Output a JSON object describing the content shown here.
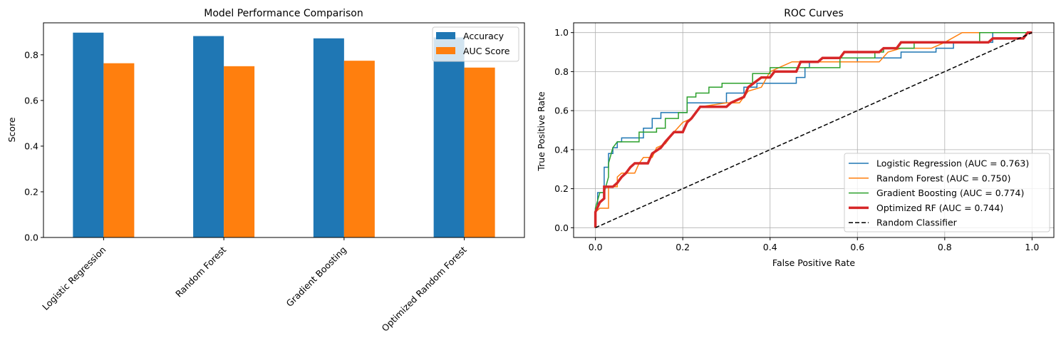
{
  "chart_data": [
    {
      "type": "bar",
      "title": "Model Performance Comparison",
      "xlabel": "",
      "ylabel": "Score",
      "ylim": [
        0,
        0.94
      ],
      "yticks": [
        "0.0",
        "0.2",
        "0.4",
        "0.6",
        "0.8"
      ],
      "categories": [
        "Logistic Regression",
        "Random Forest",
        "Gradient Boosting",
        "Optimized Random Forest"
      ],
      "series": [
        {
          "name": "Accuracy",
          "color": "#1f77b4",
          "values": [
            0.897,
            0.882,
            0.872,
            0.876
          ]
        },
        {
          "name": "AUC Score",
          "color": "#ff7f0e",
          "values": [
            0.763,
            0.75,
            0.774,
            0.744
          ]
        }
      ],
      "legend": "top-right",
      "grid": false
    },
    {
      "type": "line",
      "title": "ROC Curves",
      "xlabel": "False Positive Rate",
      "ylabel": "True Positive Rate",
      "xlim": [
        -0.05,
        1.05
      ],
      "ylim": [
        -0.05,
        1.05
      ],
      "xticks": [
        "0.0",
        "0.2",
        "0.4",
        "0.6",
        "0.8",
        "1.0"
      ],
      "yticks": [
        "0.0",
        "0.2",
        "0.4",
        "0.6",
        "0.8",
        "1.0"
      ],
      "grid": true,
      "legend": "lower-right",
      "series": [
        {
          "name": "Logistic Regression (AUC = 0.763)",
          "color": "#1f77b4",
          "style": "solid",
          "width": 1.5,
          "points": [
            [
              0,
              0
            ],
            [
              0,
              0.1
            ],
            [
              0.005,
              0.1
            ],
            [
              0.005,
              0.18
            ],
            [
              0.02,
              0.18
            ],
            [
              0.02,
              0.31
            ],
            [
              0.03,
              0.31
            ],
            [
              0.03,
              0.38
            ],
            [
              0.04,
              0.38
            ],
            [
              0.04,
              0.41
            ],
            [
              0.05,
              0.41
            ],
            [
              0.05,
              0.44
            ],
            [
              0.06,
              0.44
            ],
            [
              0.06,
              0.46
            ],
            [
              0.11,
              0.46
            ],
            [
              0.11,
              0.51
            ],
            [
              0.13,
              0.51
            ],
            [
              0.13,
              0.56
            ],
            [
              0.15,
              0.56
            ],
            [
              0.15,
              0.59
            ],
            [
              0.21,
              0.59
            ],
            [
              0.21,
              0.64
            ],
            [
              0.3,
              0.64
            ],
            [
              0.3,
              0.69
            ],
            [
              0.34,
              0.69
            ],
            [
              0.34,
              0.72
            ],
            [
              0.37,
              0.72
            ],
            [
              0.37,
              0.74
            ],
            [
              0.46,
              0.74
            ],
            [
              0.46,
              0.77
            ],
            [
              0.48,
              0.77
            ],
            [
              0.48,
              0.82
            ],
            [
              0.49,
              0.82
            ],
            [
              0.49,
              0.85
            ],
            [
              0.6,
              0.85
            ],
            [
              0.6,
              0.87
            ],
            [
              0.7,
              0.87
            ],
            [
              0.7,
              0.9
            ],
            [
              0.78,
              0.9
            ],
            [
              0.78,
              0.92
            ],
            [
              0.82,
              0.92
            ],
            [
              0.82,
              0.95
            ],
            [
              0.91,
              0.95
            ],
            [
              0.91,
              1.0
            ],
            [
              1.0,
              1.0
            ]
          ]
        },
        {
          "name": "Random Forest (AUC = 0.750)",
          "color": "#ff7f0e",
          "style": "solid",
          "width": 1.5,
          "points": [
            [
              0,
              0
            ],
            [
              0,
              0.08
            ],
            [
              0.01,
              0.1
            ],
            [
              0.03,
              0.1
            ],
            [
              0.03,
              0.21
            ],
            [
              0.05,
              0.21
            ],
            [
              0.05,
              0.26
            ],
            [
              0.06,
              0.28
            ],
            [
              0.09,
              0.28
            ],
            [
              0.1,
              0.33
            ],
            [
              0.11,
              0.36
            ],
            [
              0.13,
              0.36
            ],
            [
              0.14,
              0.41
            ],
            [
              0.16,
              0.43
            ],
            [
              0.18,
              0.49
            ],
            [
              0.2,
              0.54
            ],
            [
              0.22,
              0.56
            ],
            [
              0.24,
              0.62
            ],
            [
              0.3,
              0.64
            ],
            [
              0.33,
              0.64
            ],
            [
              0.35,
              0.7
            ],
            [
              0.38,
              0.72
            ],
            [
              0.4,
              0.8
            ],
            [
              0.42,
              0.82
            ],
            [
              0.45,
              0.85
            ],
            [
              0.65,
              0.85
            ],
            [
              0.67,
              0.9
            ],
            [
              0.7,
              0.92
            ],
            [
              0.77,
              0.92
            ],
            [
              0.8,
              0.95
            ],
            [
              0.84,
              1.0
            ],
            [
              1.0,
              1.0
            ]
          ]
        },
        {
          "name": "Gradient Boosting (AUC = 0.774)",
          "color": "#2ca02c",
          "style": "solid",
          "width": 1.5,
          "points": [
            [
              0,
              0
            ],
            [
              0,
              0.1
            ],
            [
              0.01,
              0.18
            ],
            [
              0.02,
              0.18
            ],
            [
              0.03,
              0.26
            ],
            [
              0.03,
              0.33
            ],
            [
              0.04,
              0.41
            ],
            [
              0.05,
              0.44
            ],
            [
              0.1,
              0.44
            ],
            [
              0.1,
              0.49
            ],
            [
              0.14,
              0.49
            ],
            [
              0.14,
              0.51
            ],
            [
              0.16,
              0.51
            ],
            [
              0.16,
              0.56
            ],
            [
              0.19,
              0.56
            ],
            [
              0.19,
              0.59
            ],
            [
              0.21,
              0.59
            ],
            [
              0.21,
              0.67
            ],
            [
              0.23,
              0.67
            ],
            [
              0.23,
              0.69
            ],
            [
              0.26,
              0.69
            ],
            [
              0.26,
              0.72
            ],
            [
              0.29,
              0.72
            ],
            [
              0.29,
              0.74
            ],
            [
              0.36,
              0.74
            ],
            [
              0.36,
              0.79
            ],
            [
              0.4,
              0.79
            ],
            [
              0.4,
              0.82
            ],
            [
              0.56,
              0.82
            ],
            [
              0.56,
              0.87
            ],
            [
              0.64,
              0.87
            ],
            [
              0.64,
              0.9
            ],
            [
              0.66,
              0.9
            ],
            [
              0.66,
              0.92
            ],
            [
              0.73,
              0.92
            ],
            [
              0.73,
              0.95
            ],
            [
              0.88,
              0.95
            ],
            [
              0.88,
              1.0
            ],
            [
              1.0,
              1.0
            ]
          ]
        },
        {
          "name": "Optimized RF (AUC = 0.744)",
          "color": "#d62728",
          "style": "solid",
          "width": 3.5,
          "points": [
            [
              0,
              0
            ],
            [
              0,
              0.08
            ],
            [
              0.01,
              0.13
            ],
            [
              0.02,
              0.15
            ],
            [
              0.02,
              0.21
            ],
            [
              0.04,
              0.21
            ],
            [
              0.05,
              0.23
            ],
            [
              0.06,
              0.26
            ],
            [
              0.07,
              0.28
            ],
            [
              0.08,
              0.31
            ],
            [
              0.09,
              0.33
            ],
            [
              0.12,
              0.33
            ],
            [
              0.13,
              0.38
            ],
            [
              0.15,
              0.41
            ],
            [
              0.16,
              0.44
            ],
            [
              0.18,
              0.49
            ],
            [
              0.2,
              0.49
            ],
            [
              0.21,
              0.54
            ],
            [
              0.22,
              0.56
            ],
            [
              0.24,
              0.62
            ],
            [
              0.3,
              0.62
            ],
            [
              0.31,
              0.64
            ],
            [
              0.34,
              0.67
            ],
            [
              0.35,
              0.72
            ],
            [
              0.38,
              0.77
            ],
            [
              0.4,
              0.77
            ],
            [
              0.41,
              0.8
            ],
            [
              0.46,
              0.8
            ],
            [
              0.47,
              0.85
            ],
            [
              0.51,
              0.85
            ],
            [
              0.52,
              0.87
            ],
            [
              0.56,
              0.87
            ],
            [
              0.57,
              0.9
            ],
            [
              0.65,
              0.9
            ],
            [
              0.66,
              0.92
            ],
            [
              0.69,
              0.92
            ],
            [
              0.7,
              0.95
            ],
            [
              0.9,
              0.95
            ],
            [
              0.91,
              0.97
            ],
            [
              0.98,
              0.97
            ],
            [
              0.99,
              1.0
            ],
            [
              1.0,
              1.0
            ]
          ]
        },
        {
          "name": "Random Classifier",
          "color": "#000000",
          "style": "dashed",
          "width": 1.5,
          "points": [
            [
              0,
              0
            ],
            [
              1,
              1
            ]
          ]
        }
      ]
    }
  ]
}
